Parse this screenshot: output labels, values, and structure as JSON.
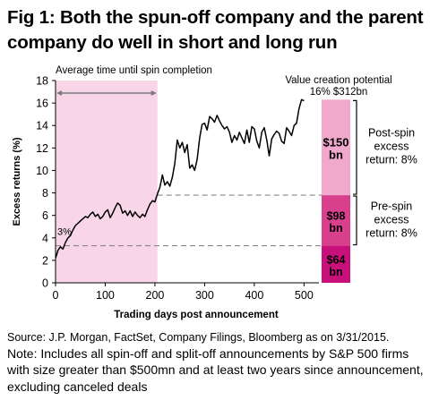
{
  "title": "Fig 1: Both the spun-off company and the parent company do well in short and long run",
  "source": "Source: J.P. Morgan, FactSet, Company Filings, Bloomberg as on 3/31/2015.",
  "note": "Note: Includes all spin-off and split-off announcements by S&P 500 firms with size greater than $500mn and at least two years since announcement, excluding canceled deals",
  "colors": {
    "shade": "#f8d6e8",
    "line": "#000000",
    "bar_top": "#f0a8cc",
    "bar_mid": "#d8408e",
    "bar_bottom": "#c8107a",
    "arrow": "#7a7a7a",
    "dash": "#888888"
  },
  "chart_data": {
    "type": "line",
    "xlabel": "Trading days post announcement",
    "ylabel": "Excess returns (%)",
    "xlim": [
      0,
      530
    ],
    "ylim": [
      0,
      18
    ],
    "xticks": [
      0,
      100,
      200,
      300,
      400,
      500
    ],
    "yticks": [
      0,
      2,
      4,
      6,
      8,
      10,
      12,
      14,
      16,
      18
    ],
    "grid": false,
    "shaded_region": {
      "x": [
        0,
        205
      ],
      "label": "Average time until spin completion"
    },
    "dashed_lines": [
      3.3,
      7.8
    ],
    "start_label": "3%",
    "value_creation": {
      "title": "Value creation potential",
      "subtitle": "16% $312bn"
    },
    "stacked_bar": {
      "segments": [
        {
          "from": 0,
          "to": 3.3,
          "label": "$64 bn"
        },
        {
          "from": 3.3,
          "to": 7.8,
          "label": "$98 bn"
        },
        {
          "from": 7.8,
          "to": 16.3,
          "label": "$150 bn"
        }
      ]
    },
    "brackets": [
      {
        "from": 3.3,
        "to": 7.8,
        "label": "Pre-spin excess return: 8%"
      },
      {
        "from": 7.8,
        "to": 16.3,
        "label": "Post-spin excess return: 8%"
      }
    ],
    "series": [
      {
        "x": [
          0,
          5,
          10,
          15,
          20,
          25,
          30,
          35,
          40,
          45,
          50,
          55,
          60,
          65,
          70,
          75,
          80,
          85,
          90,
          95,
          100,
          105,
          110,
          115,
          120,
          125,
          130,
          135,
          140,
          145,
          150,
          155,
          160,
          165,
          170,
          175,
          180,
          185,
          190,
          195,
          200,
          205,
          210,
          215,
          220,
          225,
          230,
          235,
          240,
          245,
          250,
          255,
          260,
          265,
          270,
          275,
          280,
          285,
          290,
          295,
          300,
          305,
          310,
          315,
          320,
          325,
          330,
          335,
          340,
          345,
          350,
          355,
          360,
          365,
          370,
          375,
          380,
          385,
          390,
          395,
          400,
          405,
          410,
          415,
          420,
          425,
          430,
          435,
          440,
          445,
          450,
          455,
          460,
          465,
          470,
          475,
          480,
          485,
          490,
          495,
          500
        ],
        "y": [
          2.2,
          2.9,
          3.2,
          3.0,
          3.6,
          4.0,
          4.2,
          4.7,
          5.1,
          5.3,
          5.5,
          5.7,
          5.9,
          5.8,
          6.1,
          6.3,
          5.9,
          6.1,
          5.7,
          5.9,
          6.3,
          6.5,
          5.8,
          6.2,
          6.7,
          7.1,
          6.9,
          6.2,
          6.4,
          6.0,
          6.4,
          5.9,
          6.3,
          6.0,
          5.8,
          6.1,
          5.9,
          6.5,
          7.0,
          7.3,
          7.2,
          7.9,
          8.5,
          9.6,
          8.7,
          9.0,
          8.6,
          9.4,
          10.6,
          12.7,
          12.0,
          12.5,
          11.6,
          12.3,
          10.2,
          10.5,
          10.0,
          11.0,
          12.9,
          14.1,
          14.2,
          13.6,
          14.8,
          14.6,
          14.3,
          14.9,
          14.4,
          14.0,
          13.7,
          13.9,
          13.4,
          12.5,
          13.1,
          12.7,
          13.4,
          12.9,
          12.4,
          13.6,
          12.5,
          13.9,
          13.7,
          12.6,
          12.0,
          13.4,
          13.8,
          12.7,
          11.3,
          12.8,
          13.2,
          13.5,
          13.3,
          12.6,
          12.4,
          13.8,
          13.5,
          13.1,
          14.0,
          14.2,
          15.5,
          16.3,
          16.2
        ]
      }
    ]
  }
}
